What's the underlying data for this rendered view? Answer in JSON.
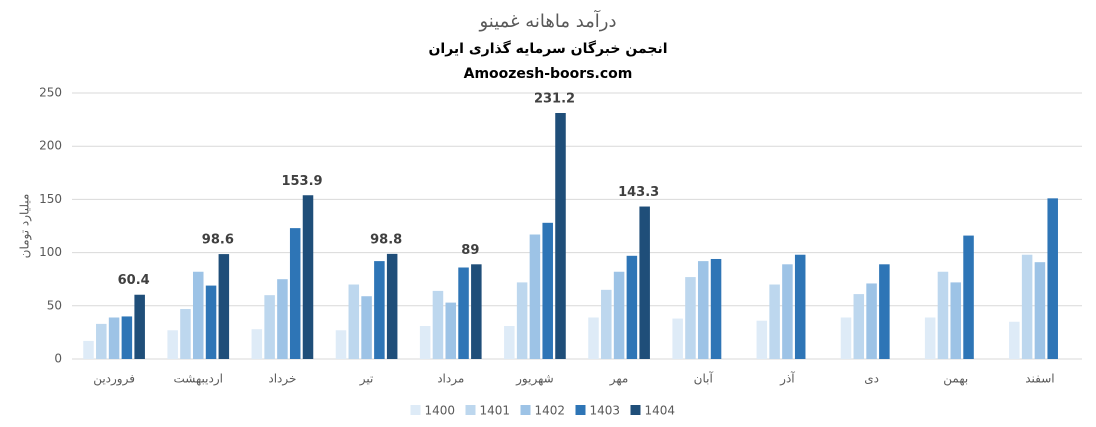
{
  "chart_data": {
    "type": "bar",
    "title": "درآمد ماهانه غمینو",
    "subtitle": "انجمن خبرگان سرمایه گذاری ایران",
    "source": "Amoozesh-boors.com",
    "y_label": "میلیارد تومان",
    "categories": [
      "فروردین",
      "اردیبهشت",
      "خرداد",
      "تیر",
      "مرداد",
      "شهریور",
      "مهر",
      "آبان",
      "آذر",
      "دی",
      "بهمن",
      "اسفند"
    ],
    "series": [
      {
        "name": "1400",
        "color": "#deebf7",
        "values": [
          17,
          27,
          28,
          27,
          31,
          31,
          39,
          38,
          36,
          39,
          39,
          35
        ]
      },
      {
        "name": "1401",
        "color": "#bdd7ee",
        "values": [
          33,
          47,
          60,
          70,
          64,
          72,
          65,
          77,
          70,
          61,
          82,
          98
        ]
      },
      {
        "name": "1402",
        "color": "#9dc3e6",
        "values": [
          39,
          82,
          75,
          59,
          53,
          117,
          82,
          92,
          89,
          71,
          72,
          91
        ]
      },
      {
        "name": "1403",
        "color": "#2e75b6",
        "values": [
          40,
          69,
          123,
          92,
          86,
          128,
          97,
          94,
          98,
          89,
          116,
          151
        ]
      },
      {
        "name": "1404",
        "color": "#1f4e79",
        "values": [
          60.4,
          98.6,
          153.9,
          98.8,
          89,
          231.2,
          143.3,
          null,
          null,
          null,
          null,
          null
        ],
        "data_labels": true
      }
    ],
    "ylim": [
      0,
      250
    ],
    "yticks": [
      0,
      50,
      100,
      150,
      200,
      250
    ],
    "grid": true,
    "legend": "bottom"
  }
}
